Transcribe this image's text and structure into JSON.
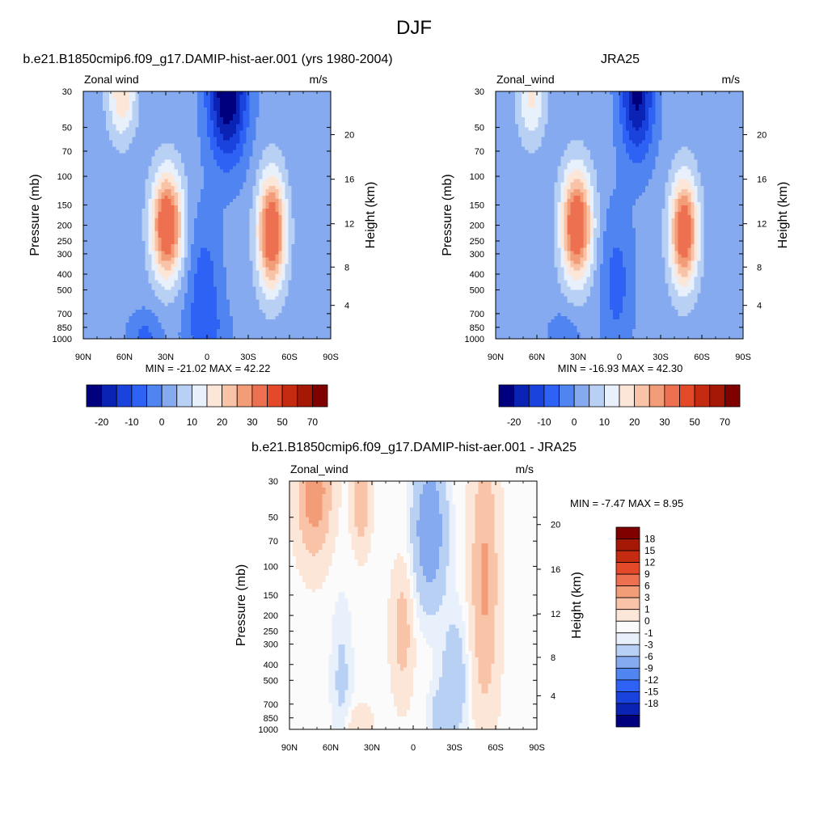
{
  "figure": {
    "title": "DJF"
  },
  "palettes": {
    "abs_colors": [
      "#00007f",
      "#0a23b4",
      "#1a43de",
      "#2d62f5",
      "#5084f0",
      "#86aaf0",
      "#b9d0f5",
      "#e8f0fb",
      "#fce6d8",
      "#f8c3a7",
      "#f39d78",
      "#ed7050",
      "#e44a2a",
      "#c42b10",
      "#a51806",
      "#800000"
    ],
    "abs_labels": [
      "-20",
      "-10",
      "0",
      "10",
      "20",
      "30",
      "50",
      "70"
    ],
    "diff_colors": [
      "#00007f",
      "#0a23b4",
      "#1a43de",
      "#2d62f5",
      "#5084f0",
      "#86aaf0",
      "#b9d0f5",
      "#e8f0fb",
      "#fbfbfb",
      "#fce6d8",
      "#f8c3a7",
      "#f39d78",
      "#ed7050",
      "#e44a2a",
      "#c42b10",
      "#a51806",
      "#800000"
    ],
    "diff_labels": [
      "-18",
      "-15",
      "-12",
      "-9",
      "-6",
      "-3",
      "-1",
      "0",
      "1",
      "3",
      "6",
      "9",
      "12",
      "15",
      "18"
    ]
  },
  "chart_data": [
    {
      "type": "heatmap",
      "title": "b.e21.B1850cmip6.f09_g17.DAMIP-hist-aer.001 (yrs 1980-2004)",
      "variable": "Zonal wind",
      "units": "m/s",
      "xlabel": "",
      "ylabel": "Pressure (mb)",
      "ylabel_right": "Height (km)",
      "x_ticks": [
        "90N",
        "60N",
        "30N",
        "0",
        "30S",
        "60S",
        "90S"
      ],
      "y_ticks": [
        "30",
        "50",
        "70",
        "100",
        "150",
        "200",
        "250",
        "300",
        "400",
        "500",
        "700",
        "850",
        "1000"
      ],
      "y_right_ticks": [
        "20",
        "16",
        "12",
        "8",
        "4"
      ],
      "min": -21.02,
      "max": 42.22,
      "stats_label": "MIN = -21.02  MAX =  42.22",
      "y_scale": "log"
    },
    {
      "type": "heatmap",
      "title": "JRA25",
      "variable": "Zonal_wind",
      "units": "m/s",
      "xlabel": "",
      "ylabel": "Pressure (mb)",
      "ylabel_right": "Height (km)",
      "x_ticks": [
        "90N",
        "60N",
        "30N",
        "0",
        "30S",
        "60S",
        "90S"
      ],
      "y_ticks": [
        "30",
        "50",
        "70",
        "100",
        "150",
        "200",
        "250",
        "300",
        "400",
        "500",
        "700",
        "850",
        "1000"
      ],
      "y_right_ticks": [
        "20",
        "16",
        "12",
        "8",
        "4"
      ],
      "min": -16.93,
      "max": 42.3,
      "stats_label": "MIN = -16.93  MAX =  42.30",
      "y_scale": "log"
    },
    {
      "type": "heatmap",
      "title": "b.e21.B1850cmip6.f09_g17.DAMIP-hist-aer.001 - JRA25",
      "variable": "Zonal_wind",
      "units": "m/s",
      "xlabel": "",
      "ylabel": "Pressure (mb)",
      "ylabel_right": "Height (km)",
      "x_ticks": [
        "90N",
        "60N",
        "30N",
        "0",
        "30S",
        "60S",
        "90S"
      ],
      "y_ticks": [
        "30",
        "50",
        "70",
        "100",
        "150",
        "200",
        "250",
        "300",
        "400",
        "500",
        "700",
        "850",
        "1000"
      ],
      "y_right_ticks": [
        "20",
        "16",
        "12",
        "8",
        "4"
      ],
      "min": -7.47,
      "max": 8.95,
      "stats_label": "MIN =  -7.47  MAX =   8.95",
      "y_scale": "log"
    }
  ]
}
